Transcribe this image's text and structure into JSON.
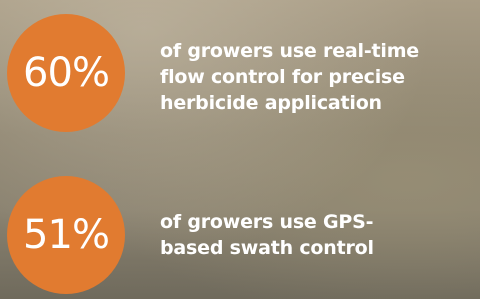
{
  "stats": [
    {
      "figure": "60%",
      "lines": [
        "of growers use real-time",
        "flow control for precise",
        "herbicide application"
      ]
    },
    {
      "figure": "51%",
      "lines": [
        "of growers use GPS-",
        "based swath control"
      ]
    }
  ]
}
